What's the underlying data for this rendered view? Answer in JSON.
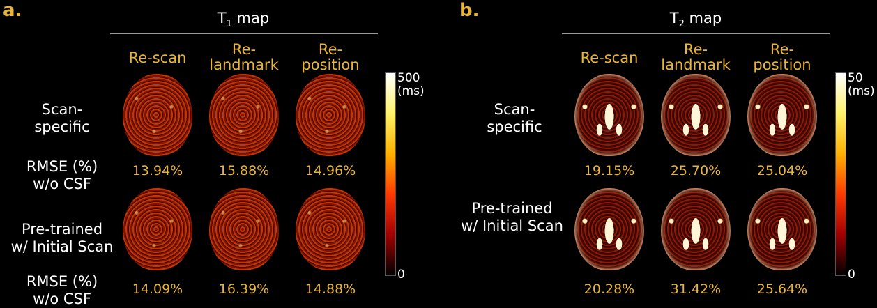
{
  "panel_a": {
    "letter": "a.",
    "title_main": "T",
    "title_sub": "1",
    "title_rest": " map",
    "columns": [
      {
        "line1": "Re-scan",
        "line2": ""
      },
      {
        "line1": "Re-",
        "line2": "landmark"
      },
      {
        "line1": "Re-",
        "line2": "position"
      }
    ],
    "row1_label": [
      "Scan-",
      "specific"
    ],
    "row2_label": [
      "Pre-trained",
      "w/ Initial Scan"
    ],
    "rmse_label": [
      "RMSE (%)",
      "w/o CSF"
    ],
    "row1_values": [
      "13.94%",
      "15.88%",
      "14.96%"
    ],
    "row2_values": [
      "14.09%",
      "16.39%",
      "14.88%"
    ],
    "colorbar": {
      "max": "500",
      "unit": "(ms)",
      "min": "0"
    }
  },
  "panel_b": {
    "letter": "b.",
    "title_main": "T",
    "title_sub": "2",
    "title_rest": " map",
    "columns": [
      {
        "line1": "Re-scan",
        "line2": ""
      },
      {
        "line1": "Re-",
        "line2": "landmark"
      },
      {
        "line1": "Re-",
        "line2": "position"
      }
    ],
    "row1_label": [
      "Scan-",
      "specific"
    ],
    "row2_label": [
      "Pre-trained",
      "w/ Initial Scan"
    ],
    "row1_values": [
      "19.15%",
      "25.70%",
      "25.04%"
    ],
    "row2_values": [
      "20.28%",
      "31.42%",
      "25.64%"
    ],
    "colorbar": {
      "max": "50",
      "unit": "(ms)",
      "min": "0"
    }
  },
  "colors": {
    "accent": "#e8b43a",
    "background": "#000000",
    "text": "#ffffff"
  }
}
